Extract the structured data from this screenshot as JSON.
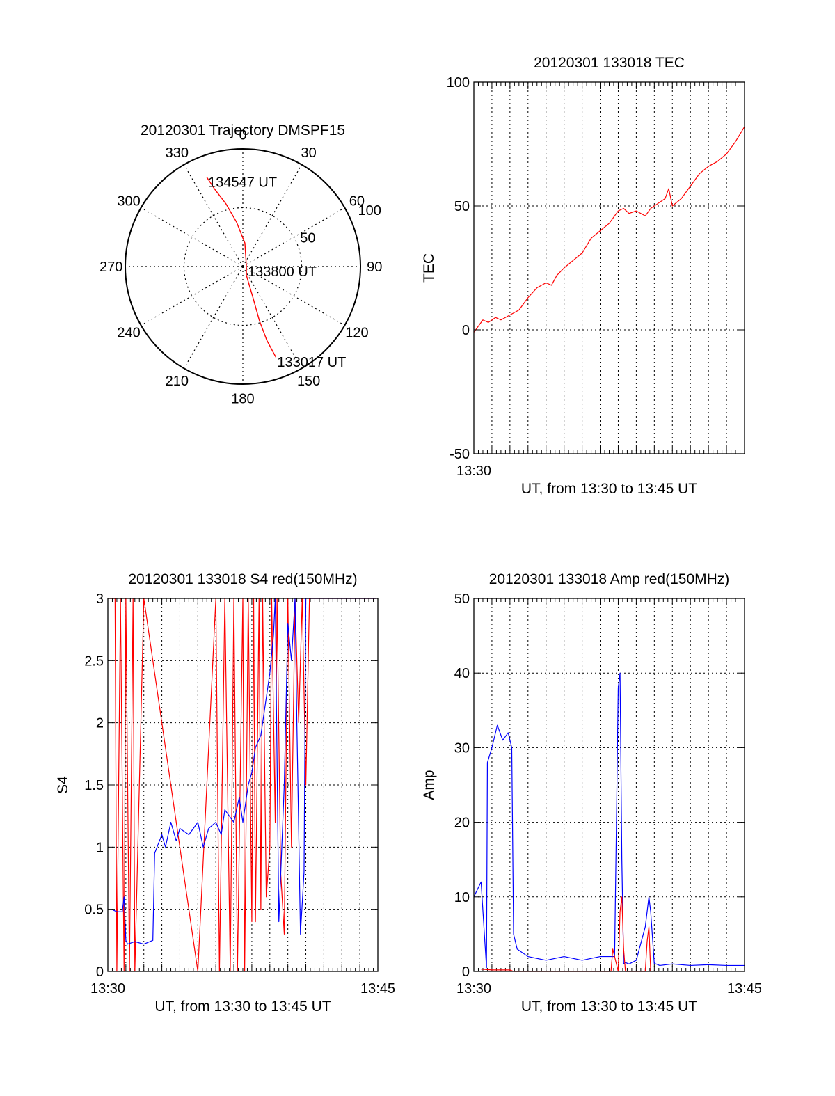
{
  "chart_data": [
    {
      "type": "polar",
      "title": "20120301 Trajectory DMSPF15",
      "angle_labels": [
        "0",
        "30",
        "60",
        "90",
        "120",
        "150",
        "180",
        "210",
        "240",
        "270",
        "300",
        "330"
      ],
      "angles": [
        0,
        30,
        60,
        90,
        120,
        150,
        180,
        210,
        240,
        270,
        300,
        330
      ],
      "radius_labels": [
        "50",
        "100"
      ],
      "radius_values": [
        50,
        100
      ],
      "rmax": 100,
      "series": [
        {
          "name": "trajectory",
          "color": "#ff0000",
          "points": [
            [
              338,
              82
            ],
            [
              340,
              70
            ],
            [
              345,
              55
            ],
            [
              352,
              38
            ],
            [
              5,
              20
            ],
            [
              90,
              3
            ],
            [
              158,
              8
            ],
            [
              162,
              28
            ],
            [
              163,
              48
            ],
            [
              162,
              66
            ],
            [
              160,
              82
            ]
          ]
        }
      ],
      "annotations": [
        {
          "text": "134547 UT",
          "at": [
            338,
            82
          ]
        },
        {
          "text": "133800 UT",
          "at": [
            90,
            3
          ]
        },
        {
          "text": "133017 UT",
          "at": [
            160,
            82
          ]
        }
      ]
    },
    {
      "type": "line",
      "title": "20120301 133018 TEC",
      "xlabel": "UT, from 13:30 to 13:45 UT",
      "ylabel": "TEC",
      "x_range": [
        0,
        15
      ],
      "ylim": [
        -50,
        100
      ],
      "yticks": [
        -50,
        0,
        50,
        100
      ],
      "ytick_labels": [
        "-50",
        "0",
        "50",
        "100"
      ],
      "xtick_labels": [
        {
          "x": 0,
          "text": "13:30"
        }
      ],
      "grid": true,
      "series": [
        {
          "name": "TEC",
          "color": "#ff0000",
          "x": [
            0,
            0.3,
            0.5,
            0.8,
            1.2,
            1.5,
            2.0,
            2.5,
            3.0,
            3.5,
            4.0,
            4.3,
            4.6,
            5.0,
            5.5,
            6.0,
            6.5,
            7.0,
            7.5,
            8.0,
            8.3,
            8.6,
            9.0,
            9.5,
            9.8,
            10.2,
            10.6,
            10.8,
            11.0,
            11.5,
            12.0,
            12.5,
            13.0,
            13.5,
            14.0,
            14.5,
            15.0
          ],
          "y": [
            -1,
            2,
            4,
            3,
            5,
            4,
            6,
            8,
            13,
            17,
            19,
            18,
            22,
            25,
            28,
            31,
            37,
            40,
            43,
            48,
            49,
            47,
            48,
            46,
            49,
            51,
            53,
            57,
            50,
            53,
            58,
            63,
            66,
            68,
            71,
            76,
            82
          ]
        }
      ]
    },
    {
      "type": "line",
      "title": "20120301 133018 S4 red(150MHz)",
      "xlabel": "UT, from 13:30 to 13:45 UT",
      "ylabel": "S4",
      "x_range": [
        0,
        15
      ],
      "ylim": [
        0,
        3
      ],
      "yticks": [
        0,
        0.5,
        1,
        1.5,
        2,
        2.5,
        3
      ],
      "ytick_labels": [
        "0",
        "0.5",
        "1",
        "1.5",
        "2",
        "2.5",
        "3"
      ],
      "xtick_labels": [
        {
          "x": 0,
          "text": "13:30"
        },
        {
          "x": 15,
          "text": "13:45"
        }
      ],
      "grid": true,
      "series": [
        {
          "name": "S4 red",
          "color": "#ff0000",
          "x": [
            0.1,
            0.4,
            0.5,
            0.7,
            0.9,
            1.0,
            1.2,
            1.4,
            1.5,
            2.0,
            5.0,
            6.0,
            6.2,
            6.5,
            6.8,
            7.0,
            7.2,
            7.5,
            7.6,
            7.8,
            8.0,
            8.1,
            8.2,
            8.4,
            8.5,
            8.6,
            8.8,
            9.0,
            9.1,
            9.3,
            9.4,
            9.6,
            9.8,
            10.0,
            10.2,
            10.4,
            10.6,
            10.8,
            11.0,
            11.2,
            11.4,
            11.6,
            11.8,
            12.0,
            12.3,
            12.6,
            12.9,
            13.2,
            13.5,
            13.8,
            14.1,
            14.4,
            14.7,
            14.9
          ],
          "y": [
            3,
            3,
            0,
            3,
            0,
            3,
            0,
            3,
            0,
            3,
            0,
            3,
            0,
            3,
            0,
            3,
            0,
            3,
            0,
            3,
            0.4,
            3,
            0.4,
            3,
            0.5,
            3,
            0.6,
            1.0,
            3,
            1.2,
            3,
            0.8,
            0.3,
            3,
            1.0,
            3,
            2.0,
            3,
            1.5,
            3,
            3,
            3,
            3,
            3,
            3,
            3,
            3,
            3,
            3,
            3,
            3,
            3,
            3,
            3
          ]
        },
        {
          "name": "S4 blue",
          "color": "#0000ff",
          "x": [
            0.2,
            0.5,
            0.8,
            0.9,
            1.0,
            1.1,
            1.5,
            2.0,
            2.5,
            2.6,
            3.0,
            3.2,
            3.5,
            3.8,
            4.0,
            4.5,
            5.0,
            5.3,
            5.6,
            6.0,
            6.3,
            6.5,
            7.0,
            7.3,
            7.5,
            7.8,
            8.0,
            8.2,
            8.5,
            8.7,
            9.0,
            9.2,
            9.3,
            9.5,
            9.8,
            10.0,
            10.2,
            10.4,
            10.5,
            10.7,
            10.9,
            11.0,
            11.3,
            11.6,
            12.0,
            12.5,
            13.0,
            13.5,
            14.0,
            14.5,
            14.9
          ],
          "y": [
            0.5,
            0.48,
            0.48,
            0.6,
            0.25,
            0.22,
            0.24,
            0.22,
            0.25,
            0.95,
            1.1,
            1.0,
            1.2,
            1.05,
            1.15,
            1.1,
            1.2,
            1.0,
            1.15,
            1.2,
            1.1,
            1.3,
            1.2,
            1.4,
            1.2,
            1.5,
            1.6,
            1.8,
            1.9,
            2.1,
            2.4,
            2.7,
            3,
            0.4,
            1.5,
            2.8,
            2.5,
            3,
            2.0,
            0.3,
            0.8,
            3,
            3,
            3,
            3,
            3,
            3,
            3,
            3,
            3,
            3
          ]
        }
      ]
    },
    {
      "type": "line",
      "title": "20120301 133018 Amp red(150MHz)",
      "xlabel": "UT, from 13:30 to 13:45 UT",
      "ylabel": "Amp",
      "x_range": [
        0,
        15
      ],
      "ylim": [
        0,
        50
      ],
      "yticks": [
        0,
        10,
        20,
        30,
        40,
        50
      ],
      "ytick_labels": [
        "0",
        "10",
        "20",
        "30",
        "40",
        "50"
      ],
      "xtick_labels": [
        {
          "x": 0,
          "text": "13:30"
        },
        {
          "x": 15,
          "text": "13:45"
        }
      ],
      "grid": true,
      "series": [
        {
          "name": "Amp blue",
          "color": "#0000ff",
          "x": [
            0,
            0.4,
            0.7,
            0.75,
            1.0,
            1.3,
            1.6,
            1.9,
            2.1,
            2.2,
            2.4,
            3.0,
            4.0,
            5.0,
            6.0,
            7.0,
            7.8,
            8.0,
            8.1,
            8.2,
            8.3,
            8.4,
            8.6,
            9.0,
            9.5,
            9.7,
            9.8,
            10.0,
            10.1,
            10.3,
            11.0,
            12.0,
            13.0,
            14.0,
            15.0
          ],
          "y": [
            10,
            12,
            0.5,
            28,
            30,
            33,
            31,
            32,
            30,
            5,
            3,
            2,
            1.5,
            2,
            1.5,
            2,
            2,
            38,
            40,
            15,
            1,
            1.2,
            1,
            1.5,
            6,
            10,
            8,
            1,
            1,
            0.8,
            1,
            0.8,
            0.9,
            0.8,
            0.8
          ]
        },
        {
          "name": "Amp red",
          "color": "#ff0000",
          "x": [
            0.4,
            1.0,
            2.0,
            2.2,
            7.6,
            7.7,
            8.0,
            8.1,
            8.2,
            8.3,
            8.4,
            9.5,
            9.6,
            9.7,
            9.8
          ],
          "y": [
            0.3,
            0.2,
            0.2,
            0,
            0,
            3,
            0,
            8,
            10,
            3,
            0,
            0,
            4,
            6,
            0
          ]
        }
      ]
    }
  ]
}
